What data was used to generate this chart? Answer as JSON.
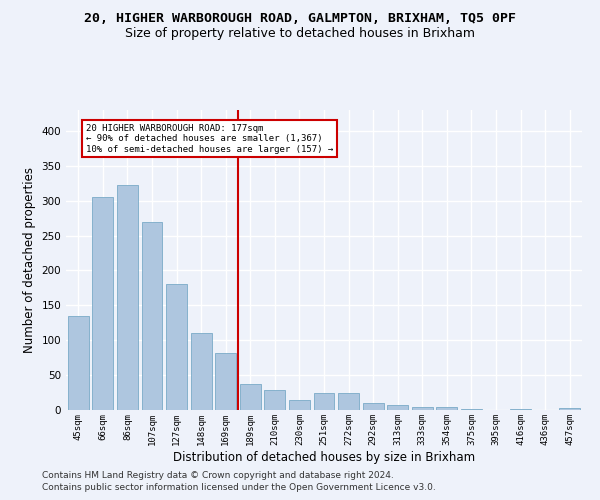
{
  "title1": "20, HIGHER WARBOROUGH ROAD, GALMPTON, BRIXHAM, TQ5 0PF",
  "title2": "Size of property relative to detached houses in Brixham",
  "xlabel": "Distribution of detached houses by size in Brixham",
  "ylabel": "Number of detached properties",
  "categories": [
    "45sqm",
    "66sqm",
    "86sqm",
    "107sqm",
    "127sqm",
    "148sqm",
    "169sqm",
    "189sqm",
    "210sqm",
    "230sqm",
    "251sqm",
    "272sqm",
    "292sqm",
    "313sqm",
    "333sqm",
    "354sqm",
    "375sqm",
    "395sqm",
    "416sqm",
    "436sqm",
    "457sqm"
  ],
  "values": [
    135,
    305,
    322,
    270,
    181,
    110,
    82,
    37,
    28,
    14,
    25,
    24,
    10,
    7,
    5,
    5,
    1,
    0,
    1,
    0,
    3
  ],
  "bar_color": "#aec6df",
  "bar_edge_color": "#7aaac8",
  "annotation_text_line1": "20 HIGHER WARBOROUGH ROAD: 177sqm",
  "annotation_text_line2": "← 90% of detached houses are smaller (1,367)",
  "annotation_text_line3": "10% of semi-detached houses are larger (157) →",
  "annotation_box_color": "#ffffff",
  "annotation_line_color": "#cc0000",
  "footnote1": "Contains HM Land Registry data © Crown copyright and database right 2024.",
  "footnote2": "Contains public sector information licensed under the Open Government Licence v3.0.",
  "ylim": [
    0,
    430
  ],
  "background_color": "#eef2fa",
  "grid_color": "#ffffff",
  "title1_fontsize": 9.5,
  "title2_fontsize": 9,
  "xlabel_fontsize": 8.5,
  "ylabel_fontsize": 8.5,
  "footnote_fontsize": 6.5
}
